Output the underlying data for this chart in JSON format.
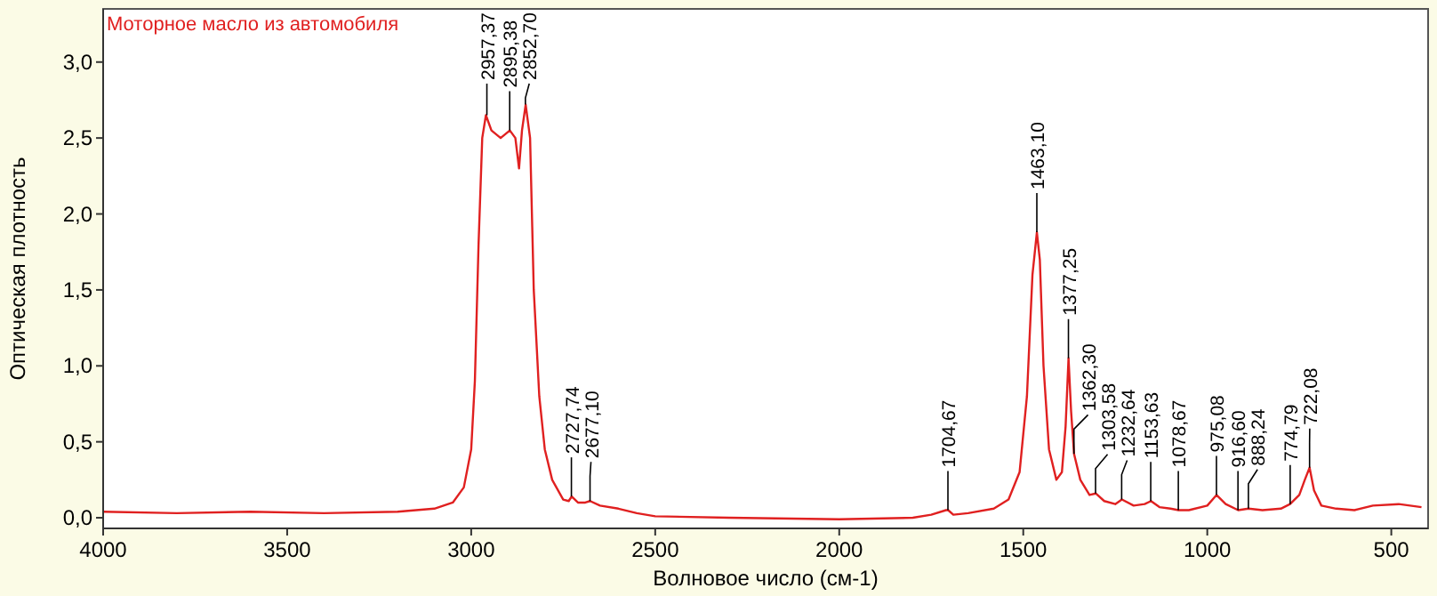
{
  "chart_data": {
    "type": "line",
    "title": "Моторное масло из автомобиля",
    "xlabel": "Волновое число (см-1)",
    "ylabel": "Оптическая плотность",
    "xlim": [
      4000,
      400
    ],
    "xticks": [
      4000,
      3500,
      3000,
      2500,
      2000,
      1500,
      1000,
      500
    ],
    "ylim": [
      -0.07,
      3.35
    ],
    "yticks": [
      {
        "value": 0,
        "label": "0,0"
      },
      {
        "value": 0.5,
        "label": "0,5"
      },
      {
        "value": 1,
        "label": "1,0"
      },
      {
        "value": 1.5,
        "label": "1,5"
      },
      {
        "value": 2,
        "label": "2,0"
      },
      {
        "value": 2.5,
        "label": "2,5"
      },
      {
        "value": 3,
        "label": "3,0"
      }
    ],
    "grid": false,
    "marker": "none",
    "line_style": "solid",
    "series": [
      {
        "color": "#e02020",
        "x": [
          4000,
          3800,
          3600,
          3400,
          3200,
          3100,
          3050,
          3020,
          3000,
          2990,
          2980,
          2970,
          2960,
          2945,
          2920,
          2895,
          2880,
          2870,
          2862,
          2852,
          2840,
          2830,
          2815,
          2800,
          2780,
          2750,
          2735,
          2727,
          2710,
          2690,
          2677,
          2650,
          2600,
          2550,
          2500,
          2300,
          2000,
          1800,
          1750,
          1710,
          1704,
          1690,
          1650,
          1580,
          1540,
          1510,
          1490,
          1475,
          1463,
          1455,
          1445,
          1430,
          1410,
          1395,
          1385,
          1377,
          1370,
          1362,
          1345,
          1320,
          1303,
          1280,
          1250,
          1232,
          1200,
          1170,
          1153,
          1130,
          1100,
          1078,
          1050,
          1000,
          975,
          950,
          916,
          888,
          850,
          800,
          775,
          750,
          735,
          722,
          710,
          690,
          650,
          600,
          550,
          480,
          418
        ],
        "values": [
          0.04,
          0.03,
          0.04,
          0.03,
          0.04,
          0.06,
          0.1,
          0.2,
          0.45,
          0.9,
          1.8,
          2.5,
          2.65,
          2.55,
          2.5,
          2.55,
          2.5,
          2.3,
          2.55,
          2.72,
          2.5,
          1.5,
          0.8,
          0.45,
          0.25,
          0.12,
          0.11,
          0.14,
          0.1,
          0.1,
          0.11,
          0.08,
          0.06,
          0.03,
          0.01,
          0,
          -0.01,
          0,
          0.02,
          0.05,
          0.05,
          0.02,
          0.03,
          0.06,
          0.12,
          0.3,
          0.8,
          1.6,
          1.88,
          1.7,
          1,
          0.45,
          0.25,
          0.3,
          0.6,
          1.05,
          0.7,
          0.42,
          0.25,
          0.15,
          0.16,
          0.11,
          0.09,
          0.12,
          0.08,
          0.09,
          0.11,
          0.07,
          0.06,
          0.05,
          0.05,
          0.08,
          0.15,
          0.09,
          0.05,
          0.06,
          0.05,
          0.06,
          0.09,
          0.15,
          0.25,
          0.33,
          0.18,
          0.08,
          0.06,
          0.05,
          0.08,
          0.09,
          0.07
        ]
      }
    ],
    "annotations": [
      {
        "text": "2957,37",
        "x": 2957.37,
        "y": 2.65
      },
      {
        "text": "2895,38",
        "x": 2895.38,
        "y": 2.55
      },
      {
        "text": "2852,70",
        "x": 2852.7,
        "y": 2.72
      },
      {
        "text": "2727,74",
        "x": 2727.74,
        "y": 0.14
      },
      {
        "text": "2677,10",
        "x": 2677.1,
        "y": 0.11
      },
      {
        "text": "1704,67",
        "x": 1704.67,
        "y": 0.05
      },
      {
        "text": "1463,10",
        "x": 1463.1,
        "y": 1.88
      },
      {
        "text": "1377,25",
        "x": 1377.25,
        "y": 1.05
      },
      {
        "text": "1362,30",
        "x": 1362.3,
        "y": 0.42
      },
      {
        "text": "1303,58",
        "x": 1303.58,
        "y": 0.16
      },
      {
        "text": "1232,64",
        "x": 1232.64,
        "y": 0.12
      },
      {
        "text": "1153,63",
        "x": 1153.63,
        "y": 0.11
      },
      {
        "text": "1078,67",
        "x": 1078.67,
        "y": 0.05
      },
      {
        "text": "975,08",
        "x": 975.08,
        "y": 0.15
      },
      {
        "text": "916,60",
        "x": 916.6,
        "y": 0.05
      },
      {
        "text": "888,24",
        "x": 888.24,
        "y": 0.06
      },
      {
        "text": "774,79",
        "x": 774.79,
        "y": 0.09
      },
      {
        "text": "722,08",
        "x": 722.08,
        "y": 0.33
      }
    ]
  }
}
